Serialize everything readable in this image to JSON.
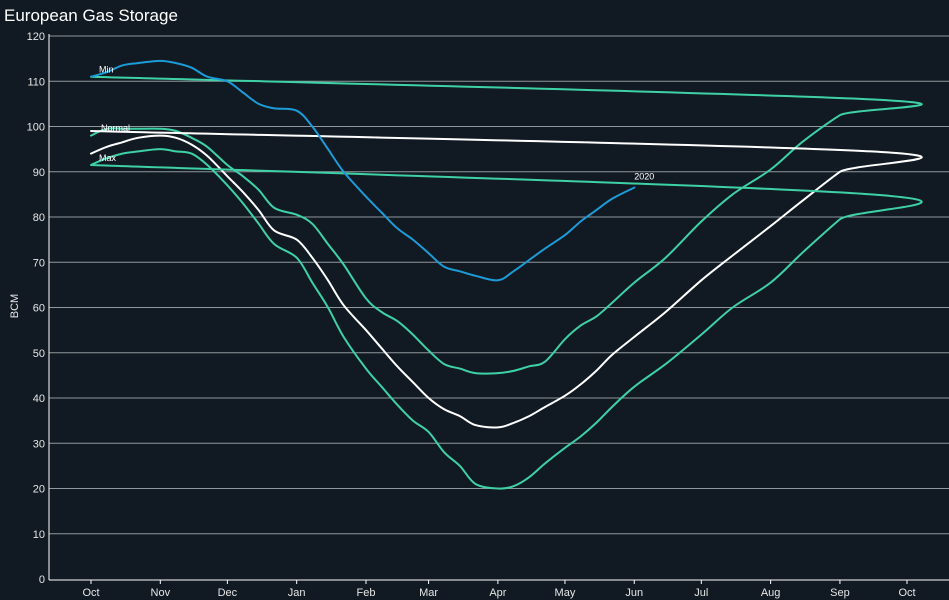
{
  "title": "European Gas Storage",
  "colors": {
    "background": "#111a22",
    "grid": "#8f979c",
    "series_2020": "#1d9bd8",
    "series_min": "#3fd1a6",
    "series_normal": "#ffffff",
    "series_max": "#3fd1a6"
  },
  "chart_data": {
    "type": "line",
    "title": "European Gas Storage",
    "xlabel": "",
    "ylabel": "BCM",
    "ylim": [
      0,
      120
    ],
    "yticks": [
      0,
      10,
      20,
      30,
      40,
      50,
      60,
      70,
      80,
      90,
      100,
      110,
      120
    ],
    "xlim": [
      "Oct 1",
      "Oct 1 (next year)"
    ],
    "grid": "horizontal",
    "xticks": [
      "Oct",
      "Nov",
      "Dec",
      "Jan",
      "Feb",
      "Mar",
      "Apr",
      "May",
      "Jun",
      "Jul",
      "Aug",
      "Sep",
      "Oct"
    ],
    "series": [
      {
        "name": "Min",
        "x": [
          "Oct 1",
          "Oct 8",
          "Oct 15",
          "Oct 22",
          "Nov 1",
          "Nov 8",
          "Nov 15",
          "Nov 22",
          "Dec 1",
          "Dec 8",
          "Dec 15",
          "Dec 22",
          "Jan 1",
          "Jan 8",
          "Jan 15",
          "Jan 22",
          "Feb 1",
          "Feb 8",
          "Feb 15",
          "Feb 22",
          "Mar 1",
          "Mar 8",
          "Mar 15",
          "Mar 22",
          "Apr 1",
          "Apr 8",
          "Apr 15",
          "Apr 22",
          "May 1",
          "May 8",
          "May 15",
          "May 22",
          "Jun 1",
          "Jun 15",
          "Jul 1",
          "Jul 15",
          "Aug 1",
          "Aug 15",
          "Sep 1",
          "Sep 15",
          "Oct 1"
        ],
        "values": [
          98,
          99.5,
          99.5,
          99.5,
          99.5,
          99,
          97.5,
          95.5,
          91.5,
          89,
          86,
          82,
          80.5,
          78.5,
          74,
          69.5,
          62,
          59,
          57,
          54,
          50.5,
          47.5,
          46.5,
          45.5,
          45.5,
          46,
          47,
          48,
          53,
          56,
          58,
          61,
          65.5,
          71,
          79,
          85,
          90.5,
          96.5,
          102.5,
          106,
          111
        ]
      },
      {
        "name": "Normal",
        "x": [
          "Oct 1",
          "Oct 8",
          "Oct 15",
          "Oct 22",
          "Nov 1",
          "Nov 8",
          "Nov 15",
          "Nov 22",
          "Dec 1",
          "Dec 8",
          "Dec 15",
          "Dec 22",
          "Jan 1",
          "Jan 8",
          "Jan 15",
          "Jan 22",
          "Feb 1",
          "Feb 8",
          "Feb 15",
          "Feb 22",
          "Mar 1",
          "Mar 8",
          "Mar 15",
          "Mar 22",
          "Apr 1",
          "Apr 8",
          "Apr 15",
          "Apr 22",
          "May 1",
          "May 8",
          "May 15",
          "May 22",
          "Jun 1",
          "Jun 15",
          "Jul 1",
          "Jul 15",
          "Aug 1",
          "Aug 15",
          "Sep 1",
          "Sep 15",
          "Oct 1"
        ],
        "values": [
          94,
          95.5,
          96.5,
          97.5,
          98,
          97.5,
          96,
          93.5,
          89,
          85.5,
          81.5,
          77,
          75,
          71,
          66,
          60.5,
          55,
          51,
          47,
          43.5,
          40,
          37.5,
          36,
          34,
          33.5,
          34.5,
          36,
          38,
          40.5,
          43,
          46,
          49.5,
          53.5,
          59,
          66,
          71.5,
          78,
          83.5,
          90,
          94.5,
          99
        ]
      },
      {
        "name": "Max",
        "x": [
          "Oct 1",
          "Oct 8",
          "Oct 15",
          "Oct 22",
          "Nov 1",
          "Nov 8",
          "Nov 15",
          "Nov 22",
          "Dec 1",
          "Dec 8",
          "Dec 15",
          "Dec 22",
          "Jan 1",
          "Jan 8",
          "Jan 15",
          "Jan 22",
          "Feb 1",
          "Feb 8",
          "Feb 15",
          "Feb 22",
          "Mar 1",
          "Mar 8",
          "Mar 15",
          "Mar 22",
          "Apr 1",
          "Apr 8",
          "Apr 15",
          "Apr 22",
          "May 1",
          "May 8",
          "May 15",
          "May 22",
          "Jun 1",
          "Jun 15",
          "Jul 1",
          "Jul 15",
          "Aug 1",
          "Aug 15",
          "Sep 1",
          "Sep 15",
          "Oct 1"
        ],
        "values": [
          91.5,
          93,
          94,
          94.5,
          95,
          94.5,
          94,
          91.5,
          87,
          83,
          78.5,
          74,
          71,
          65.5,
          60,
          53.5,
          46.5,
          42.5,
          38.5,
          35,
          32.5,
          28,
          25,
          21,
          20,
          20.5,
          22.5,
          25.5,
          29,
          31.5,
          34.5,
          38,
          42.5,
          47.5,
          54,
          60,
          65.5,
          72,
          79.5,
          85,
          91.5
        ]
      },
      {
        "name": "2020",
        "x": [
          "Oct 1",
          "Oct 8",
          "Oct 15",
          "Oct 22",
          "Nov 1",
          "Nov 8",
          "Nov 15",
          "Nov 22",
          "Dec 1",
          "Dec 8",
          "Dec 15",
          "Dec 22",
          "Jan 1",
          "Jan 8",
          "Jan 15",
          "Jan 22",
          "Feb 1",
          "Feb 8",
          "Feb 15",
          "Feb 22",
          "Mar 1",
          "Mar 8",
          "Mar 15",
          "Mar 22",
          "Apr 1",
          "Apr 8",
          "Apr 15",
          "Apr 22",
          "May 1",
          "May 8",
          "May 15",
          "May 22",
          "Jun 1"
        ],
        "values": [
          111,
          112,
          113.5,
          114,
          114.5,
          114,
          113,
          111,
          110,
          107.5,
          105,
          104,
          103.5,
          100,
          95,
          90,
          84.5,
          81,
          77.5,
          75,
          72,
          69,
          68,
          67,
          66,
          68,
          70.5,
          73,
          76,
          79,
          81.5,
          84,
          86.5
        ]
      }
    ]
  }
}
